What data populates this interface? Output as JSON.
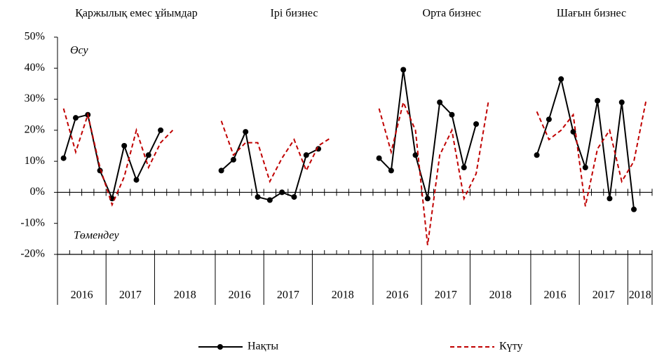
{
  "chart_data": {
    "type": "line",
    "panel_titles": [
      "Қаржылық емес ұйымдар",
      "Ірі бизнес",
      "Орта бизнес",
      "Шағын бизнес"
    ],
    "year_labels": [
      [
        "2016",
        "2017",
        "2018"
      ],
      [
        "2016",
        "2017",
        "2018"
      ],
      [
        "2016",
        "2017",
        "2018"
      ],
      [
        "2016",
        "2017",
        "2018"
      ]
    ],
    "annotations": [
      "Өсу",
      "Төмендеу"
    ],
    "categories": [
      null,
      null,
      null,
      null,
      null,
      null,
      null,
      null,
      null,
      null,
      null,
      null,
      null,
      null,
      null,
      null,
      null,
      null,
      null,
      null,
      null,
      null,
      null,
      null,
      null,
      null,
      null,
      null,
      null,
      null,
      null,
      null,
      null,
      null,
      null,
      null,
      null,
      null,
      null,
      null,
      null,
      null,
      null,
      null,
      null,
      null,
      null,
      null,
      null
    ],
    "series": [
      {
        "name": "Нақты",
        "color": "#000000",
        "style": "solid-marker",
        "values": [
          11,
          24,
          25,
          7,
          -2,
          15,
          4,
          12,
          20,
          null,
          null,
          null,
          null,
          7,
          10.5,
          19.5,
          -1.5,
          -2.5,
          0,
          -1.5,
          12,
          14,
          null,
          null,
          null,
          null,
          11,
          7,
          39.5,
          12,
          -2,
          29,
          25,
          8,
          22,
          null,
          null,
          null,
          null,
          12,
          23.5,
          36.5,
          19.5,
          8,
          29.5,
          -2,
          29,
          -5.5,
          null
        ]
      },
      {
        "name": "Күту",
        "color": "#c00000",
        "style": "dashed",
        "values": [
          27,
          13,
          25,
          8,
          -4,
          5,
          20,
          8,
          16,
          20,
          null,
          null,
          null,
          23,
          12,
          16,
          16,
          3.5,
          11,
          17,
          7,
          15,
          17.5,
          null,
          null,
          null,
          27,
          13,
          29,
          20,
          -17,
          12,
          20,
          -2,
          6,
          29,
          null,
          null,
          null,
          26,
          17,
          20,
          25,
          -4.5,
          14,
          20,
          3.5,
          10,
          29.5
        ]
      }
    ],
    "ylim": [
      -20,
      50
    ],
    "yticks": [
      {
        "value": -20,
        "label": "-20%"
      },
      {
        "value": -10,
        "label": "-10%"
      },
      {
        "value": 0,
        "label": "0%"
      },
      {
        "value": 10,
        "label": "10%"
      },
      {
        "value": 20,
        "label": "20%"
      },
      {
        "value": 30,
        "label": "30%"
      },
      {
        "value": 40,
        "label": "40%"
      },
      {
        "value": 50,
        "label": "50%"
      }
    ],
    "grid": false
  }
}
